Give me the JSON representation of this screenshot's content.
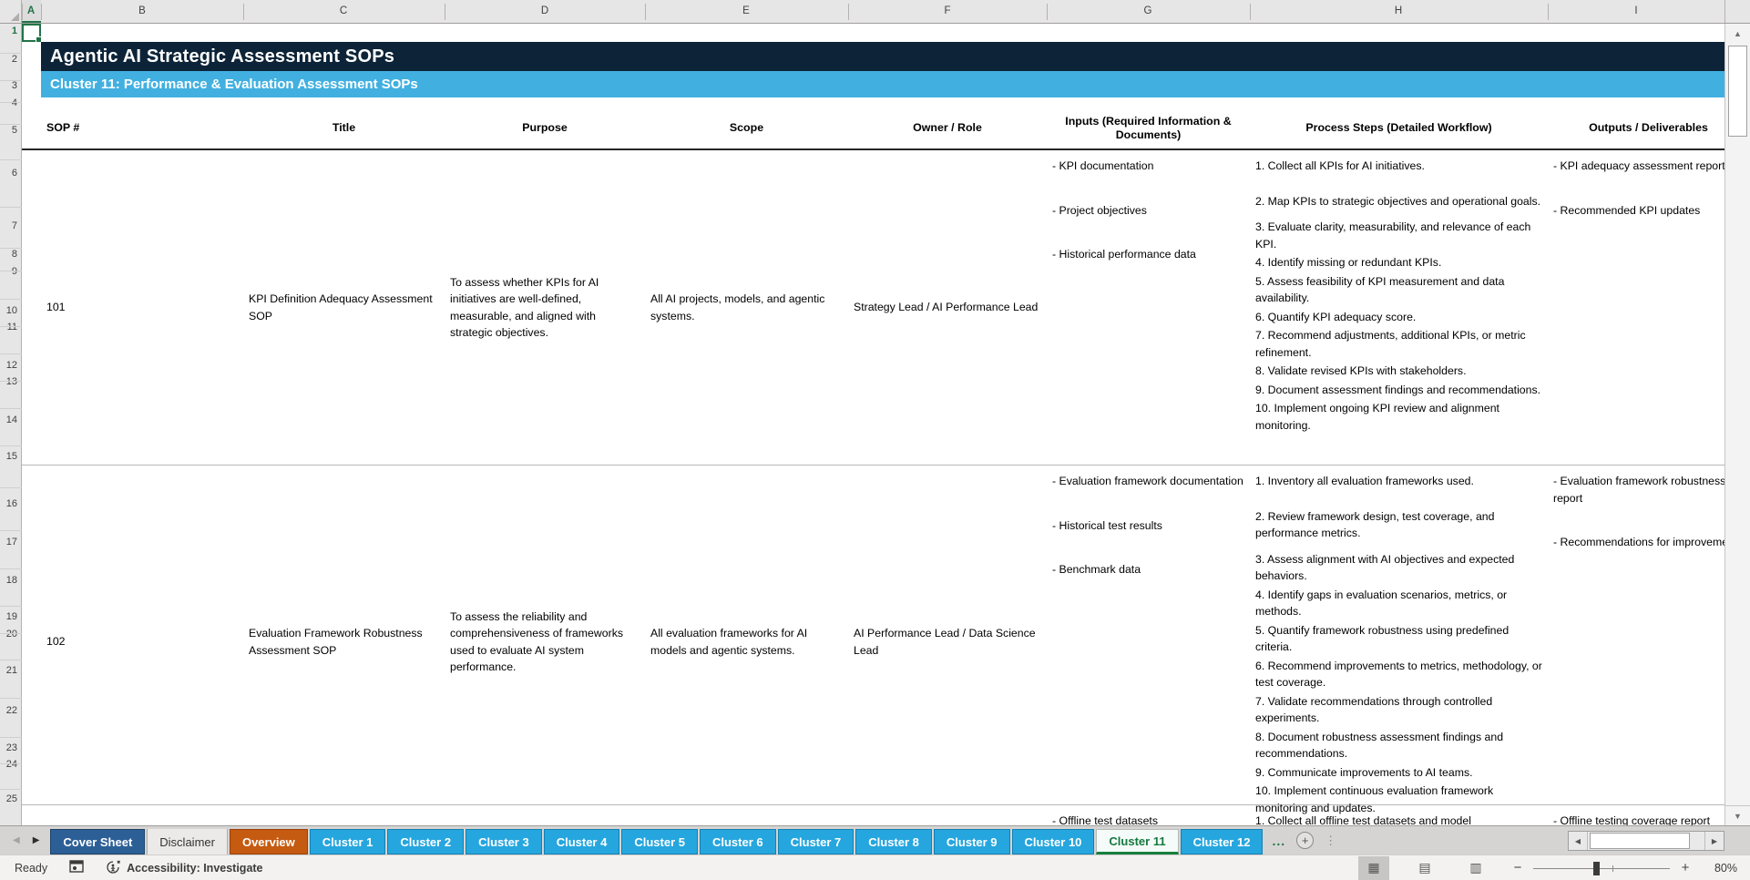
{
  "workbook": {
    "title": "Agentic AI Strategic Assessment SOPs",
    "subtitle": "Cluster 11: Performance & Evaluation Assessment SOPs"
  },
  "grid": {
    "column_letters": [
      "A",
      "B",
      "C",
      "D",
      "E",
      "F",
      "G",
      "H",
      "I"
    ],
    "row_numbers": [
      "1",
      "2",
      "3",
      "4",
      "5",
      "6",
      "7",
      "8",
      "9",
      "10",
      "11",
      "12",
      "13",
      "14",
      "15",
      "16",
      "17",
      "18",
      "19",
      "20",
      "21",
      "22",
      "23",
      "24",
      "25"
    ]
  },
  "table": {
    "headers": [
      "SOP #",
      "Title",
      "Purpose",
      "Scope",
      "Owner / Role",
      "Inputs (Required Information & Documents)",
      "Process Steps (Detailed Workflow)",
      "Outputs / Deliverables"
    ],
    "rows": [
      {
        "sop_number": "101",
        "title": "KPI Definition Adequacy Assessment SOP",
        "purpose": "To assess whether KPIs for AI initiatives are well-defined, measurable, and aligned with strategic objectives.",
        "scope": "All AI projects, models, and agentic systems.",
        "owner_role": "Strategy Lead / AI Performance Lead",
        "inputs": [
          "- KPI documentation",
          "- Project objectives",
          "- Historical performance data"
        ],
        "process_steps": [
          "1. Collect all KPIs for AI initiatives.",
          "2. Map KPIs to strategic objectives and operational goals.",
          "3. Evaluate clarity, measurability, and relevance of each KPI.",
          "4. Identify missing or redundant KPIs.",
          "5. Assess feasibility of KPI measurement and data availability.",
          "6. Quantify KPI adequacy score.",
          "7. Recommend adjustments, additional KPIs, or metric refinement.",
          "8. Validate revised KPIs with stakeholders.",
          "9. Document assessment findings and recommendations.",
          "10. Implement ongoing KPI review and alignment monitoring."
        ],
        "outputs": [
          "- KPI adequacy assessment report",
          "- Recommended KPI updates"
        ]
      },
      {
        "sop_number": "102",
        "title": "Evaluation Framework Robustness Assessment SOP",
        "purpose": "To assess the reliability and comprehensiveness of frameworks used to evaluate AI system performance.",
        "scope": "All evaluation frameworks for AI models and agentic systems.",
        "owner_role": "AI Performance Lead / Data Science Lead",
        "inputs": [
          "- Evaluation framework documentation",
          "- Historical test results",
          "- Benchmark data"
        ],
        "process_steps": [
          "1. Inventory all evaluation frameworks used.",
          "2. Review framework design, test coverage, and performance metrics.",
          "3. Assess alignment with AI objectives and expected behaviors.",
          "4. Identify gaps in evaluation scenarios, metrics, or methods.",
          "5. Quantify framework robustness using predefined criteria.",
          "6. Recommend improvements to metrics, methodology, or test coverage.",
          "7. Validate recommendations through controlled experiments.",
          "8. Document robustness assessment findings and recommendations.",
          "9. Communicate improvements to AI teams.",
          "10. Implement continuous evaluation framework monitoring and updates."
        ],
        "outputs": [
          "- Evaluation framework robustness report",
          "- Recommendations for improvement"
        ]
      },
      {
        "sop_number": "",
        "inputs": [
          "- Offline test datasets"
        ],
        "process_steps": [
          "1. Collect all offline test datasets and model"
        ],
        "outputs": [
          "- Offline testing coverage report"
        ]
      }
    ]
  },
  "sheet_tabs": {
    "tabs": [
      {
        "label": "Cover Sheet",
        "variant": "navy"
      },
      {
        "label": "Disclaimer",
        "variant": "plain"
      },
      {
        "label": "Overview",
        "variant": "orange"
      },
      {
        "label": "Cluster 1",
        "variant": "blue"
      },
      {
        "label": "Cluster 2",
        "variant": "blue"
      },
      {
        "label": "Cluster 3",
        "variant": "blue"
      },
      {
        "label": "Cluster 4",
        "variant": "blue"
      },
      {
        "label": "Cluster 5",
        "variant": "blue"
      },
      {
        "label": "Cluster 6",
        "variant": "blue"
      },
      {
        "label": "Cluster 7",
        "variant": "blue"
      },
      {
        "label": "Cluster 8",
        "variant": "blue"
      },
      {
        "label": "Cluster 9",
        "variant": "blue"
      },
      {
        "label": "Cluster 10",
        "variant": "blue"
      },
      {
        "label": "Cluster 11",
        "variant": "active"
      },
      {
        "label": "Cluster 12",
        "variant": "blue"
      }
    ],
    "overflow_label": "..."
  },
  "status_bar": {
    "mode": "Ready",
    "accessibility": "Accessibility: Investigate",
    "zoom_level": "80%"
  },
  "icons": {
    "tab_nav_left": "◀",
    "tab_nav_right": "▶",
    "scroll_up": "▲",
    "scroll_down": "▼",
    "scroll_left": "◀",
    "scroll_right": "▶",
    "view_normal": "▦",
    "view_page_layout": "▤",
    "view_page_break": "▥",
    "zoom_out": "−",
    "zoom_in": "+",
    "add_sheet": "+",
    "more_dots": "⋮"
  },
  "colors": {
    "title_band": "#0d2438",
    "subtitle_band": "#41b0e0",
    "tab_blue": "#26a6de",
    "tab_navy": "#2d5f97",
    "tab_orange": "#c55a11",
    "active_tab_green": "#15793f",
    "selection_green": "#217346"
  }
}
